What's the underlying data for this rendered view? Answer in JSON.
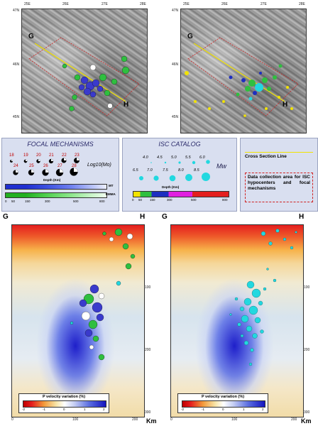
{
  "maps": {
    "lon_ticks": [
      "25E",
      "26E",
      "27E",
      "28E"
    ],
    "lat_ticks": [
      "47N",
      "46N",
      "45N"
    ],
    "label_g": "G",
    "label_h": "H"
  },
  "focal_panel": {
    "title": "FOCAL MECHANISMS",
    "row1": [
      "18",
      "19",
      "20",
      "21",
      "22",
      "23"
    ],
    "row2": [
      "24",
      "25",
      "26",
      "27",
      "28"
    ],
    "log_label": "Log10(Mo)",
    "depth_label": "Depth (Km)",
    "mt_label": "MT",
    "emma_label": "EMMA",
    "depth_ticks": [
      "0",
      "50",
      "150",
      "300",
      "500",
      "800"
    ]
  },
  "isc_panel": {
    "title": "ISC CATALOG",
    "row1": [
      "4.0",
      "4.5",
      "5.0",
      "5.5",
      "6.0"
    ],
    "row2": [
      "6.5",
      "7.0",
      "7.5",
      "8.0",
      "8.5"
    ],
    "mw_label": "Mw",
    "depth_label": "Depth (Km)",
    "depth_ticks": [
      "0",
      "50",
      "150",
      "300",
      "500",
      "800"
    ]
  },
  "legend_panel": {
    "cross_section": "Cross Section Line",
    "area_label": "Data collection area for ISC hypocenters and focal mechanisms"
  },
  "sections": {
    "label_g": "G",
    "label_h": "H",
    "x_ticks": [
      "0",
      "100",
      "200"
    ],
    "y_ticks": [
      "100",
      "200",
      "300"
    ],
    "km_label": "Km",
    "colorbar_title": "P velocity variation (%)",
    "colorbar_ticks": [
      "-2",
      "-1",
      "0",
      "1",
      "2"
    ]
  }
}
